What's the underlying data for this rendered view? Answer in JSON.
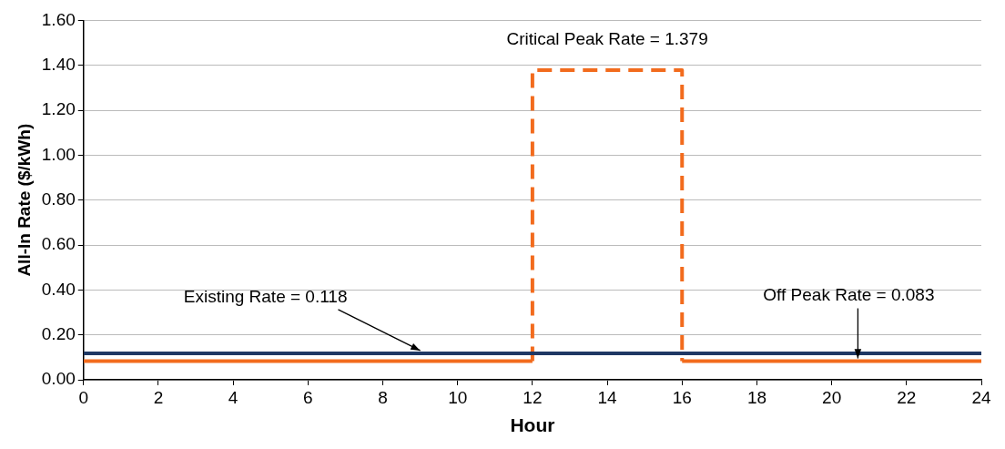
{
  "chart_data": {
    "type": "line",
    "xlabel": "Hour",
    "ylabel": "All-In Rate ($/kWh)",
    "xlim": [
      0,
      24
    ],
    "xticks": [
      0,
      2,
      4,
      6,
      8,
      10,
      12,
      14,
      16,
      18,
      20,
      22,
      24
    ],
    "ylim": [
      0,
      1.6
    ],
    "yticks": [
      {
        "value": 0,
        "label": "0.00"
      },
      {
        "value": 0.2,
        "label": "0.20"
      },
      {
        "value": 0.4,
        "label": "0.40"
      },
      {
        "value": 0.6,
        "label": "0.60"
      },
      {
        "value": 0.8,
        "label": "0.80"
      },
      {
        "value": 1,
        "label": "1.00"
      },
      {
        "value": 1.2,
        "label": "1.20"
      },
      {
        "value": 1.4,
        "label": "1.40"
      },
      {
        "value": 1.6,
        "label": "1.60"
      }
    ],
    "grid": "y",
    "legend": false,
    "series": [
      {
        "color": "#1f3864",
        "x": [
          0,
          24
        ],
        "values": [
          0.118,
          0.118
        ],
        "line_style": "solid"
      },
      {
        "color": "#f26b1d",
        "x": [
          0,
          12,
          14,
          16,
          24
        ],
        "values": [
          0.083,
          0.083,
          null,
          0.083,
          0.083
        ],
        "line_style": "solid"
      },
      {
        "color": "#f26b1d",
        "x": [
          12,
          12,
          16,
          16
        ],
        "values": [
          0.083,
          1.379,
          1.379,
          0.083
        ],
        "line_style": "dashed"
      }
    ],
    "annotations": [
      {
        "text": "Critical Peak Rate = 1.379",
        "x": 14,
        "y": 1.379
      },
      {
        "text": "Existing Rate = 0.118",
        "x": 9,
        "y": 0.118
      },
      {
        "text": "Off Peak Rate = 0.083",
        "x": 20.7,
        "y": 0.083
      }
    ]
  }
}
